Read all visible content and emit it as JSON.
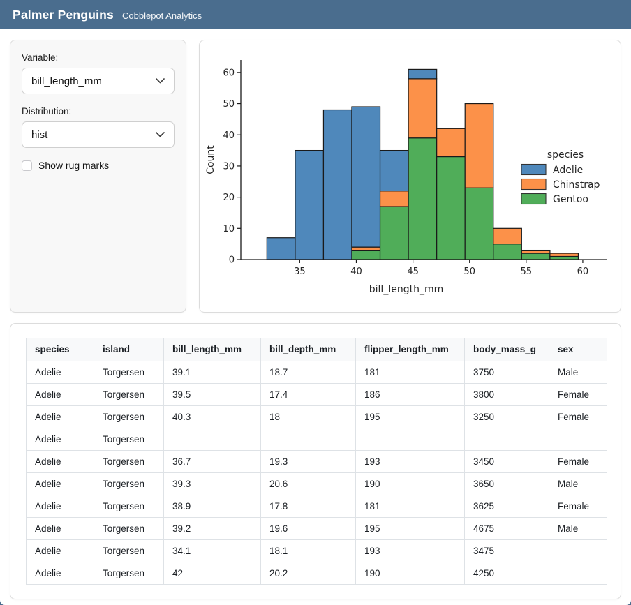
{
  "header": {
    "title": "Palmer Penguins",
    "subtitle": "Cobblepot Analytics"
  },
  "sidebar": {
    "variable_label": "Variable:",
    "variable_value": "bill_length_mm",
    "distribution_label": "Distribution:",
    "distribution_value": "hist",
    "rug_label": "Show rug marks",
    "rug_checked": false
  },
  "chart_data": {
    "type": "bar",
    "subtype": "stacked-histogram",
    "title": "",
    "xlabel": "bill_length_mm",
    "ylabel": "Count",
    "legend_title": "species",
    "legend_position": "right",
    "bin_edges": [
      32.1,
      34.6,
      37.1,
      39.6,
      42.1,
      44.6,
      47.1,
      49.6,
      52.1,
      54.6,
      57.1,
      59.6
    ],
    "series": [
      {
        "name": "Adelie",
        "color": "#4f88bb",
        "values": [
          7,
          35,
          48,
          45,
          13,
          3,
          0,
          0,
          0,
          0,
          0
        ]
      },
      {
        "name": "Chinstrap",
        "color": "#fc9149",
        "values": [
          0,
          0,
          0,
          1,
          5,
          19,
          9,
          27,
          5,
          1,
          1
        ]
      },
      {
        "name": "Gentoo",
        "color": "#50ad59",
        "values": [
          0,
          0,
          0,
          3,
          17,
          39,
          33,
          23,
          5,
          2,
          1
        ]
      }
    ],
    "stack_bottom_to_top": [
      "Gentoo",
      "Chinstrap",
      "Adelie"
    ],
    "bin_totals": [
      7,
      35,
      48,
      49,
      35,
      61,
      42,
      50,
      10,
      3,
      2
    ],
    "x_ticks": [
      35,
      40,
      45,
      50,
      55,
      60
    ],
    "y_ticks": [
      0,
      10,
      20,
      30,
      40,
      50,
      60
    ],
    "xlim": [
      29.8,
      62.1
    ],
    "ylim": [
      0,
      64
    ],
    "edge_color": "#1a1a1a",
    "grid": false
  },
  "table": {
    "columns": [
      "species",
      "island",
      "bill_length_mm",
      "bill_depth_mm",
      "flipper_length_mm",
      "body_mass_g",
      "sex"
    ],
    "rows": [
      [
        "Adelie",
        "Torgersen",
        "39.1",
        "18.7",
        "181",
        "3750",
        "Male"
      ],
      [
        "Adelie",
        "Torgersen",
        "39.5",
        "17.4",
        "186",
        "3800",
        "Female"
      ],
      [
        "Adelie",
        "Torgersen",
        "40.3",
        "18",
        "195",
        "3250",
        "Female"
      ],
      [
        "Adelie",
        "Torgersen",
        "",
        "",
        "",
        "",
        ""
      ],
      [
        "Adelie",
        "Torgersen",
        "36.7",
        "19.3",
        "193",
        "3450",
        "Female"
      ],
      [
        "Adelie",
        "Torgersen",
        "39.3",
        "20.6",
        "190",
        "3650",
        "Male"
      ],
      [
        "Adelie",
        "Torgersen",
        "38.9",
        "17.8",
        "181",
        "3625",
        "Female"
      ],
      [
        "Adelie",
        "Torgersen",
        "39.2",
        "19.6",
        "195",
        "4675",
        "Male"
      ],
      [
        "Adelie",
        "Torgersen",
        "34.1",
        "18.1",
        "193",
        "3475",
        ""
      ],
      [
        "Adelie",
        "Torgersen",
        "42",
        "20.2",
        "190",
        "4250",
        ""
      ]
    ]
  },
  "icons": {
    "variable_chevron": "chevron-down-icon",
    "distribution_chevron": "chevron-down-icon"
  },
  "colors": {
    "header_bg": "#4a6d8e",
    "sidebar_bg": "#f8f8f8",
    "card_border": "#dcdcdc",
    "table_header_bg": "#f8f9fa",
    "adelie": "#4f88bb",
    "chinstrap": "#fc9149",
    "gentoo": "#50ad59"
  }
}
